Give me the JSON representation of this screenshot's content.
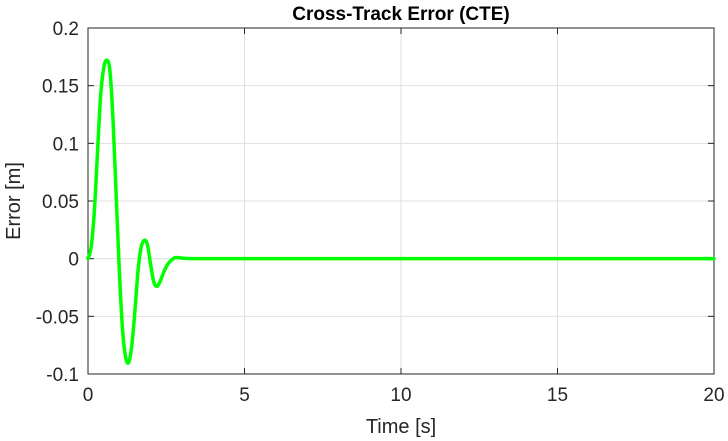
{
  "chart_data": {
    "type": "line",
    "title": "Cross-Track Error (CTE)",
    "xlabel": "Time [s]",
    "ylabel": "Error [m]",
    "xlim": [
      0,
      20
    ],
    "ylim": [
      -0.1,
      0.2
    ],
    "xticks": [
      0,
      5,
      10,
      15,
      20
    ],
    "xtick_labels": [
      "0",
      "5",
      "10",
      "15",
      "20"
    ],
    "yticks": [
      -0.1,
      -0.05,
      0,
      0.05,
      0.1,
      0.15,
      0.2
    ],
    "ytick_labels": [
      "-0.1",
      "-0.05",
      "0",
      "0.05",
      "0.1",
      "0.15",
      "0.2"
    ],
    "grid": true,
    "series": [
      {
        "color": "#00ff00",
        "x": [
          0,
          0.1,
          0.2,
          0.3,
          0.4,
          0.5,
          0.6,
          0.7,
          0.8,
          0.9,
          1.0,
          1.1,
          1.2,
          1.3,
          1.4,
          1.5,
          1.6,
          1.7,
          1.8,
          1.9,
          2.0,
          2.1,
          2.2,
          2.3,
          2.4,
          2.5,
          2.6,
          2.7,
          2.8,
          3.0,
          3.2,
          3.5,
          4.0,
          5.0,
          10.0,
          15.0,
          20.0
        ],
        "y": [
          0,
          0.01,
          0.04,
          0.09,
          0.14,
          0.165,
          0.172,
          0.163,
          0.12,
          0.055,
          -0.01,
          -0.06,
          -0.085,
          -0.09,
          -0.075,
          -0.045,
          -0.01,
          0.01,
          0.016,
          0.012,
          -0.005,
          -0.02,
          -0.024,
          -0.02,
          -0.013,
          -0.007,
          -0.003,
          -0.0005,
          0.001,
          0.0005,
          0.0002,
          0,
          0,
          0,
          0,
          0,
          0
        ]
      }
    ]
  }
}
